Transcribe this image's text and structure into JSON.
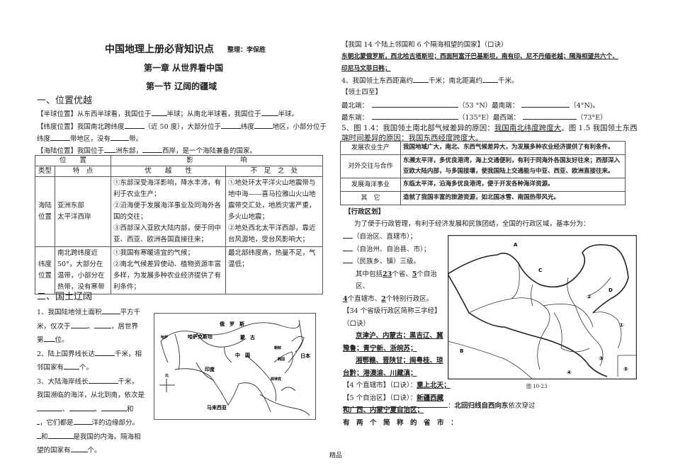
{
  "header": {
    "title": "中国地理上册必背知识点",
    "author": "整理：李保胜",
    "chapter": "第一章 从世界看中国",
    "section": "第一节 辽阔的疆域"
  },
  "left": {
    "h1": "一、位置优越",
    "p1a": "【半球位置】从东西半球看，我国位于",
    "p1b": "半球；从南北半球看，我国位于",
    "p1c": "半球。",
    "p2a": "【纬度位置】我国南北跨纬度",
    "p2b": "（近 50 度），大部分位于",
    "p2c": "纬度",
    "p2d": "地区，小部分位于",
    "p3a": "纬度",
    "p3b": "带地区，没有",
    "p3c": "带。",
    "p4a": "【海陆位置】我国位于",
    "p4b": "洲东部，",
    "p4c": "西岸，是一个海陆兼备的国家。",
    "table": {
      "h_pos": "位　　置",
      "h_effect": "影　　　　　　　响",
      "h_type": "类型",
      "h_feat": "特　点",
      "h_adv": "优　　越　　性",
      "h_dis": "不　足　之　处",
      "rows": [
        {
          "type": "海陆位置",
          "feat": "亚洲东部\n太平洋西岸",
          "adv": "①东部深受海洋影响，降水丰沛，有利于农业生产；\n②沿海便于发展海洋事业及同海外各国的交往；\n③西部深入亚欧大陆内部，便于同中亚、西亚、欧洲各国直接往来；",
          "dis": "①地处环太平洋火山地震带与地中海——喜马拉雅山火山地震带交汇处，地质灾害严重，多火山地震；\n②地处西北太平洋西部，靠近台风源地，受台风影响大；"
        },
        {
          "type": "纬度位置",
          "feat": "南北跨纬度近50°，大部分在温带，小部分在热带，没有寒带",
          "adv": "①我国有寒暖适宜的气候；\n②南北气候差异使动、植物资源丰富多样，为发展多种农业经济提供了有利条件；",
          "dis": "最北部纬度高，热量不足，气温低；"
        }
      ]
    },
    "h2": "二、国土辽阔",
    "q1a": "1、我国陆地领土面积",
    "q1b": "平方千",
    "q1c": "米，仅次于",
    "q1d": "、",
    "q1e": "，居世界",
    "q1f": "第",
    "q1g": "位。",
    "q2a": "2、陆上国界线长达",
    "q2b": "千米，相",
    "q2c": "邻国家有",
    "q2d": "个。",
    "q3a": "3、大陆海岸线长",
    "q3b": "千米，",
    "q3c": "我国濒临的海洋，从北到南，依次是",
    "q3d": "、",
    "q3e": "、",
    "q3f": "和",
    "q3g": "，它们都是",
    "q3h": "洋的边缘部分。",
    "q3i": "和",
    "q3j": "是我国的内海。隔海相",
    "q3k": "望的国家有",
    "q3l": "个。",
    "map": {
      "russia": "俄　罗　斯",
      "kazakh": "哈萨克斯坦",
      "mongolia": "蒙　古",
      "china": "中　国",
      "india": "印度",
      "japan": "日本",
      "korea": "韩国",
      "malaysia": "马来西亚",
      "north": "北",
      "n1": "朝鲜",
      "n2": "菲律宾",
      "n3": "哈萨"
    }
  },
  "right": {
    "r1": "【我国 14 个陆上邻国和 6 个隔海相望的国家】（口诀）",
    "r2": "东朝北蒙俄罗斯，西北哈吉塔斯坦；西面阿富汗巴基斯坦，南有印、尼不丹缅老越；隔海相望共六个、",
    "r3": "印尼马文菲日韩；",
    "r4a": "4、我国领土东西距离约",
    "r4b": "千米；南北距离约",
    "r4c": "千米。",
    "r5": "【领土四至】",
    "r6a": "最北端：",
    "r6b": "（53 °N）最南端：",
    "r6c": "（4°N)。",
    "r7a": "最东端：",
    "r7b": "（135°E）最西端：",
    "r7c": "（73°E）",
    "r8a": "5、图 1.4：我国领土南北部气候差异的原因：",
    "r8b": "我国南北纬度跨度大",
    "r8c": "。图 1.5 我国领土东西",
    "r9a": "端时间差异的原因：",
    "r9b": "我国东西经度跨度大",
    "r9c": "。",
    "table": [
      {
        "k": "发展农业生产",
        "v": "我国地域广大，南北、东西气候差异大，为发展多种农业经济提供了有利条件。"
      },
      {
        "k": "对外交往与合作",
        "v": "东濒太平洋，多优良港湾，海上交通便利，有利于同海外各国友好往来；西部深入亚欧大陆内部，与多国接壤，使我国陆上交通能与中亚、西亚、欧洲直接往来。"
      },
      {
        "k": "发展海洋事业",
        "v": "东临太平洋，沿海多优良港湾，便于开发各种海洋资源。"
      },
      {
        "k": "其　它",
        "v": "造就了我国丰富的旅游资源，如北国冰雪、南国热带风光。"
      }
    ],
    "adm": "【行政区划】",
    "a1": "为了便于行政管理，有利于经济发展和民族团结，全国的行政区域，基本分为：",
    "a2": "（自治区、直辖市）；",
    "a3": "（自治州、自治县、市）；",
    "a4": "（民族乡、镇）三级。",
    "a5a": "其中包括",
    "a5b": "23",
    "a5c": "个省、",
    "a5d": "5",
    "a5e": "个自治区、",
    "a6a": "4",
    "a6b": "个直辖市、",
    "a6c": "2",
    "a6d": "个特别行政区。",
    "a7": "【34 个省级行政区简称三字经】",
    "a8": "（口诀）",
    "a9": "京津沪、内蒙古；黑吉辽、冀",
    "a10": "豫鲁；青宁新、浙皖苏；",
    "a11": "湘鄂赣、晋陕甘；闽粤桂、琼",
    "a12": "台黔；港澳渝、川藏滇；",
    "a13a": "【4 个直辖市】（口诀）：",
    "a13b": "重上北天；",
    "a14a": "【5 个自治区】（口诀）：",
    "a14b": "新疆西藏",
    "a15": "和广西、内蒙宁夏自治区；",
    "a16": "有　两　个　简　称　的　省　市　：",
    "a17a": "：",
    "a17b": "北回归线自西向东",
    "a17c": "依次穿过",
    "map": {
      "A": "A",
      "B": "B",
      "C": "C",
      "D": "D",
      "m1": "①",
      "m2": "②",
      "m3": "③",
      "m4": "④",
      "m5": "⑤",
      "caption": "图 10-23"
    }
  },
  "footer": "精品"
}
